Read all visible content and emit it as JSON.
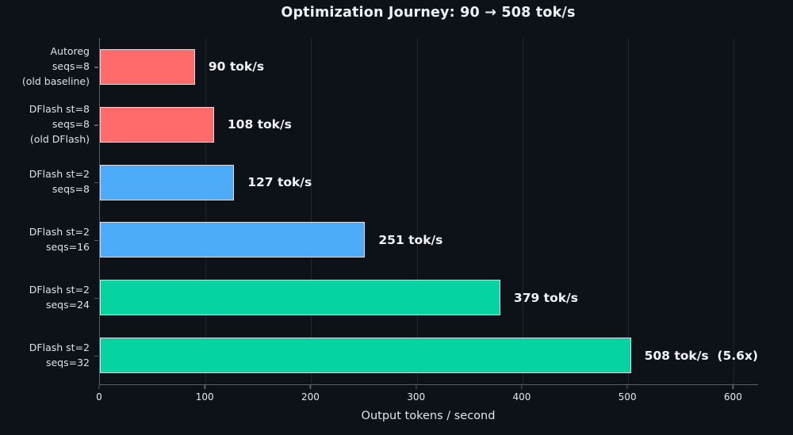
{
  "window": {
    "background": "#0d1118"
  },
  "chart_data": {
    "type": "bar",
    "orientation": "horizontal",
    "title": "Optimization Journey: 90 → 508 tok/s",
    "xlabel": "Output tokens / second",
    "categories": [
      "Autoreg\nseqs=8\n(old baseline)",
      "DFlash st=8\nseqs=8\n(old DFlash)",
      "DFlash st=2\nseqs=8",
      "DFlash st=2\nseqs=16",
      "DFlash st=2\nseqs=24",
      "DFlash st=2\nseqs=32"
    ],
    "values": [
      90,
      108,
      127,
      251,
      379,
      508
    ],
    "value_labels": [
      "90 tok/s",
      "108 tok/s",
      "127 tok/s",
      "251 tok/s",
      "379 tok/s",
      "508 tok/s  (5.6x)"
    ],
    "bar_colors": [
      "#ff6b6b",
      "#ff6b6b",
      "#4dabf7",
      "#4dabf7",
      "#05d3a2",
      "#05d3a2"
    ],
    "bar_edge_color": "#d9dde2",
    "xticks": [
      0,
      100,
      200,
      300,
      400,
      500,
      600
    ],
    "xlim": [
      0,
      623
    ],
    "grid": true,
    "legend": null,
    "gridline_color": "#20262e",
    "axis_color": "#596069",
    "label_text_color": "#dfe3e8",
    "value_text_color": "#f2f4f7",
    "title_color": "#eef1f5"
  }
}
